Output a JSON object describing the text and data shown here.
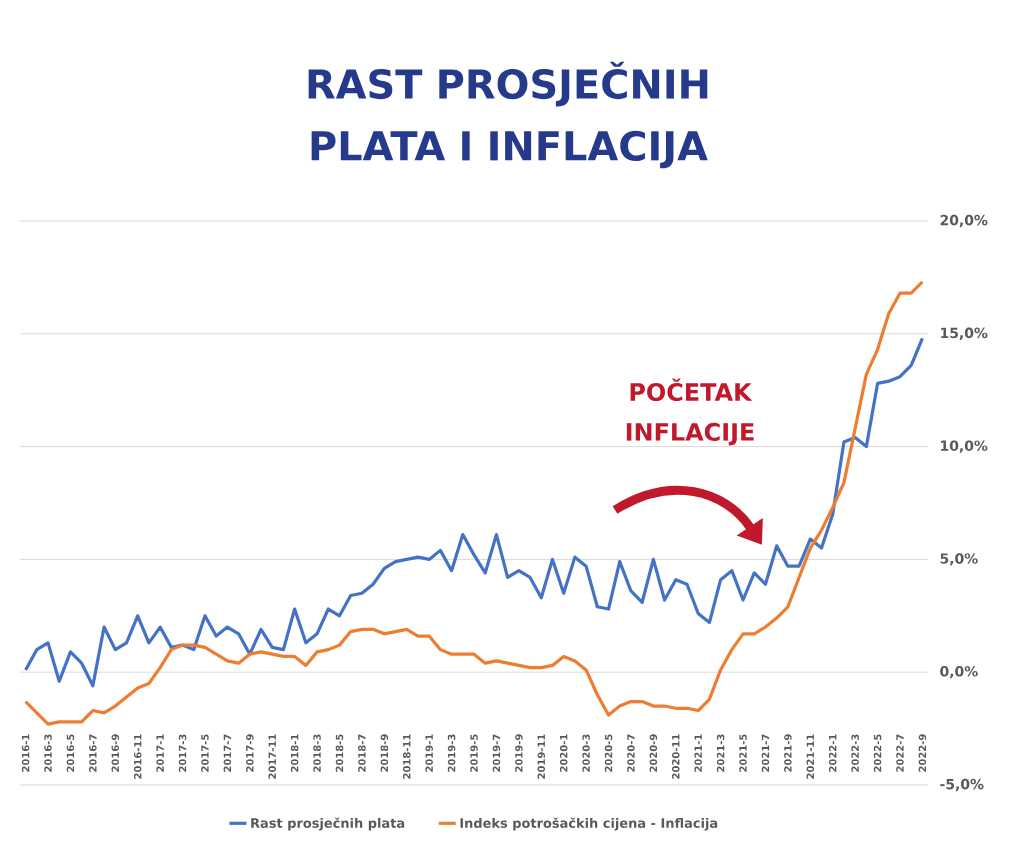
{
  "chart_data": {
    "type": "line",
    "title": "RAST PROSJEČNIH PLATA I INFLACIJA",
    "categories": [
      "2016-1",
      null,
      "2016-3",
      null,
      "2016-5",
      null,
      "2016-7",
      null,
      "2016-9",
      null,
      "2016-11",
      null,
      "2017-1",
      null,
      "2017-3",
      null,
      "2017-5",
      null,
      "2017-7",
      null,
      "2017-9",
      null,
      "2017-11",
      null,
      "2018-1",
      null,
      "2018-3",
      null,
      "2018-5",
      null,
      "2018-7",
      null,
      "2018-9",
      null,
      "2018-11",
      null,
      "2019-1",
      null,
      "2019-3",
      null,
      "2019-5",
      null,
      "2019-7",
      null,
      "2019-9",
      null,
      "2019-11",
      null,
      "2020-1",
      null,
      "2020-3",
      null,
      "2020-5",
      null,
      "2020-7",
      null,
      "2020-9",
      null,
      "2020-11",
      null,
      "2021-1",
      null,
      "2021-3",
      null,
      "2021-5",
      null,
      "2021-7",
      null,
      "2021-9",
      null,
      "2021-11",
      null,
      "2022-1",
      null,
      "2022-3",
      null,
      "2022-5",
      null,
      "2022-7",
      null,
      "2022-9"
    ],
    "series": [
      {
        "name": "Rast prosječnih plata",
        "color": "#4472c4",
        "values": [
          0.1,
          1.0,
          1.3,
          -0.4,
          0.9,
          0.4,
          -0.6,
          2.0,
          1.0,
          1.3,
          2.5,
          1.3,
          2.0,
          1.1,
          1.2,
          1.0,
          2.5,
          1.6,
          2.0,
          1.7,
          0.8,
          1.9,
          1.1,
          1.0,
          2.8,
          1.3,
          1.7,
          2.8,
          2.5,
          3.4,
          3.5,
          3.9,
          4.6,
          4.9,
          5.0,
          5.1,
          5.0,
          5.4,
          4.5,
          6.1,
          5.2,
          4.4,
          6.1,
          4.2,
          4.5,
          4.2,
          3.3,
          5.0,
          3.5,
          5.1,
          4.7,
          2.9,
          2.8,
          4.9,
          3.6,
          3.1,
          5.0,
          3.2,
          4.1,
          3.9,
          2.6,
          2.2,
          4.1,
          4.5,
          3.2,
          4.4,
          3.9,
          5.6,
          4.7,
          4.7,
          5.9,
          5.5,
          7.0,
          10.2,
          10.4,
          10.0,
          12.8,
          12.9,
          13.1,
          13.6,
          14.8
        ]
      },
      {
        "name": "Indeks potrošačkih cijena - Inflacija",
        "color": "#ed7d31",
        "values": [
          -1.3,
          -1.8,
          -2.3,
          -2.2,
          -2.2,
          -2.2,
          -1.7,
          -1.8,
          -1.5,
          -1.1,
          -0.7,
          -0.5,
          0.2,
          1.0,
          1.2,
          1.2,
          1.1,
          0.8,
          0.5,
          0.4,
          0.8,
          0.9,
          0.8,
          0.7,
          0.7,
          0.3,
          0.9,
          1.0,
          1.2,
          1.8,
          1.9,
          1.9,
          1.7,
          1.8,
          1.9,
          1.6,
          1.6,
          1.0,
          0.8,
          0.8,
          0.8,
          0.4,
          0.5,
          0.4,
          0.3,
          0.2,
          0.2,
          0.3,
          0.7,
          0.5,
          0.1,
          -1.0,
          -1.9,
          -1.5,
          -1.3,
          -1.3,
          -1.5,
          -1.5,
          -1.6,
          -1.6,
          -1.7,
          -1.2,
          0.1,
          1.0,
          1.7,
          1.7,
          2.0,
          2.4,
          2.9,
          4.2,
          5.5,
          6.3,
          7.3,
          8.4,
          10.8,
          13.2,
          14.3,
          15.9,
          16.8,
          16.8,
          17.3
        ]
      }
    ],
    "ylim": [
      -5,
      20
    ],
    "yticks": [
      {
        "value": -5,
        "label": "-5,0%"
      },
      {
        "value": 0,
        "label": "0,0%"
      },
      {
        "value": 5,
        "label": "5,0%"
      },
      {
        "value": 10,
        "label": "10,0%"
      },
      {
        "value": 15,
        "label": "15,0%"
      },
      {
        "value": 20,
        "label": "20,0%"
      }
    ],
    "grid": "y",
    "legend": "bottom",
    "annotations": [
      "POČETAK INFLACIJE"
    ]
  }
}
